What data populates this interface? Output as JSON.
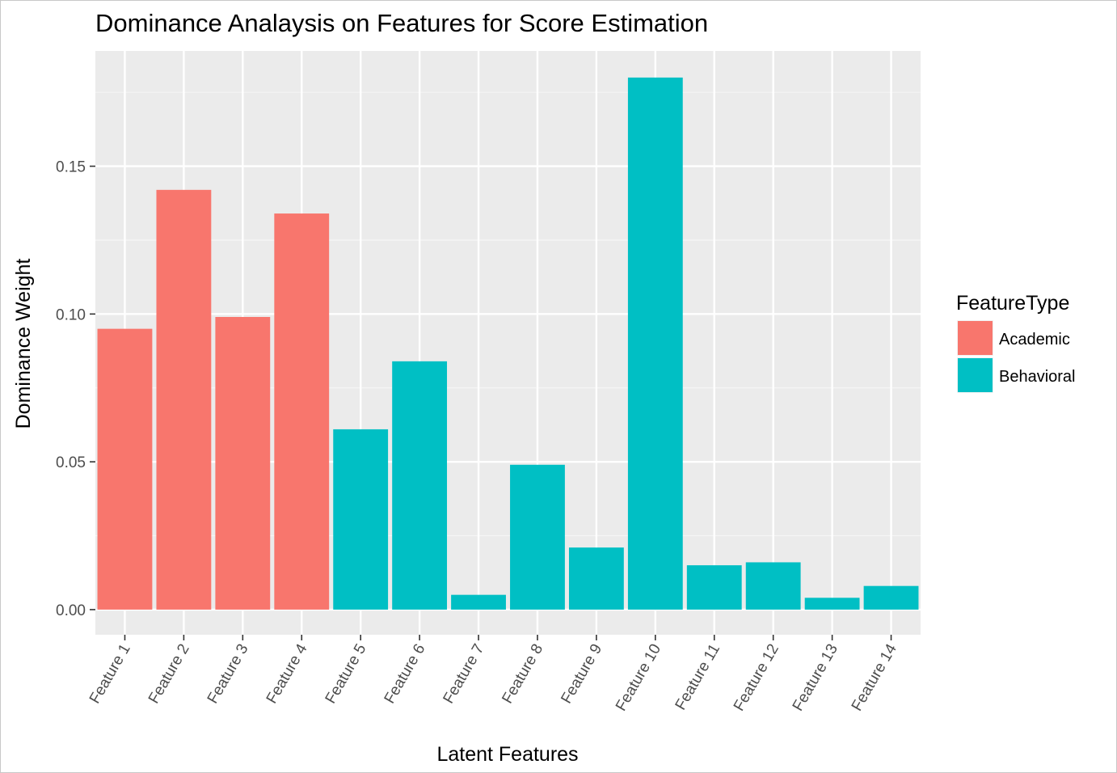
{
  "chart_data": {
    "type": "bar",
    "title": "Dominance Analaysis on Features for Score Estimation",
    "xlabel": "Latent Features",
    "ylabel": "Dominance Weight",
    "ylim": [
      -0.0085,
      0.189
    ],
    "yticks": [
      0.0,
      0.05,
      0.1,
      0.15
    ],
    "ytick_labels": [
      "0.00",
      "0.05",
      "0.10",
      "0.15"
    ],
    "grid": true,
    "legend": {
      "title": "FeatureType",
      "placement": "right"
    },
    "categories": [
      "Feature 1",
      "Feature 2",
      "Feature 3",
      "Feature 4",
      "Feature 5",
      "Feature 6",
      "Feature 7",
      "Feature 8",
      "Feature 9",
      "Feature 10",
      "Feature 11",
      "Feature 12",
      "Feature 13",
      "Feature 14"
    ],
    "values": [
      0.095,
      0.142,
      0.099,
      0.134,
      0.061,
      0.084,
      0.005,
      0.049,
      0.021,
      0.18,
      0.015,
      0.016,
      0.004,
      0.008
    ],
    "groups": [
      "Academic",
      "Academic",
      "Academic",
      "Academic",
      "Behavioral",
      "Behavioral",
      "Behavioral",
      "Behavioral",
      "Behavioral",
      "Behavioral",
      "Behavioral",
      "Behavioral",
      "Behavioral",
      "Behavioral"
    ],
    "series": [
      {
        "name": "Academic",
        "color": "#F8766D"
      },
      {
        "name": "Behavioral",
        "color": "#00BFC4"
      }
    ]
  }
}
